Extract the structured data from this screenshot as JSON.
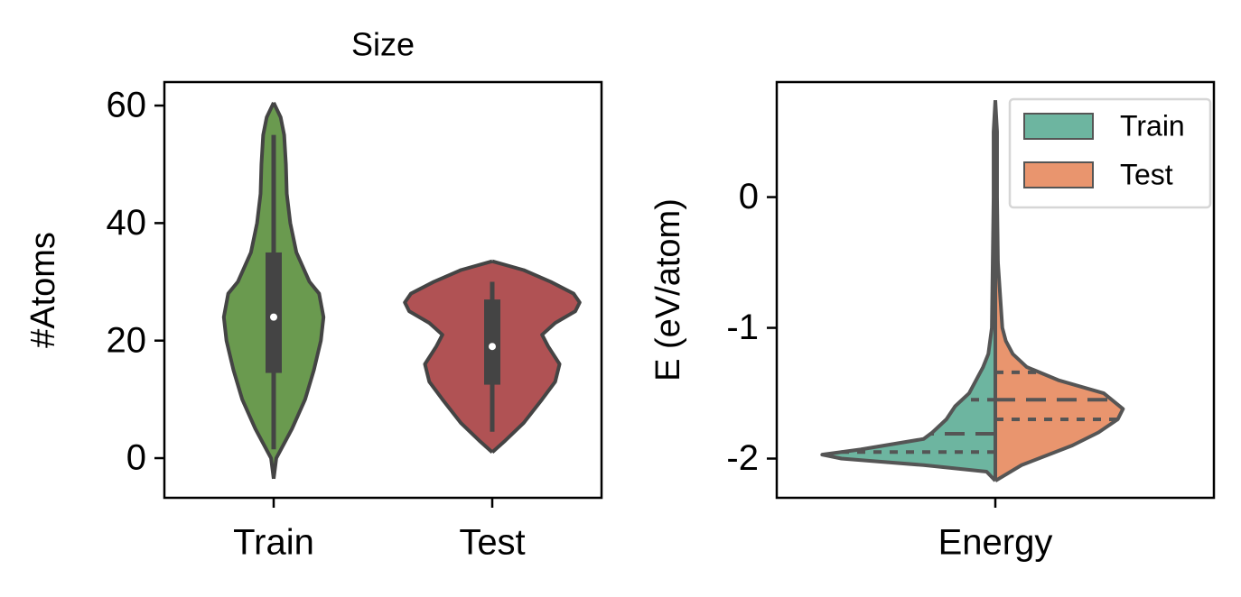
{
  "chart_data": [
    {
      "type": "violin",
      "title": "Size",
      "ylabel": "#Atoms",
      "categories": [
        "Train",
        "Test"
      ],
      "ylim": [
        -6.75,
        64
      ],
      "yticks": [
        0,
        20,
        40,
        60
      ],
      "edge_color": "#444444",
      "violins": [
        {
          "color": "#6a9a4f",
          "y": [
            -3.5,
            0,
            5,
            10,
            15,
            20,
            24,
            28,
            30,
            35,
            40,
            45,
            50,
            55,
            58,
            60.5
          ],
          "density": [
            0,
            0.03,
            0.21,
            0.36,
            0.46,
            0.54,
            0.57,
            0.52,
            0.41,
            0.26,
            0.19,
            0.15,
            0.14,
            0.12,
            0.08,
            0
          ],
          "box": {
            "whisker_low": 1.5,
            "q1": 14.5,
            "median": 24,
            "q3": 35,
            "whisker_high": 55
          }
        },
        {
          "color": "#b05254",
          "y": [
            1,
            3,
            6,
            10,
            13,
            16,
            19,
            21,
            23,
            25,
            26.5,
            28,
            30,
            32,
            33.5
          ],
          "density": [
            0,
            0.15,
            0.36,
            0.57,
            0.72,
            0.77,
            0.64,
            0.57,
            0.72,
            0.95,
            1.0,
            0.93,
            0.67,
            0.36,
            0
          ],
          "box": {
            "whisker_low": 4.5,
            "q1": 12.5,
            "median": 19,
            "q3": 27,
            "whisker_high": 30
          }
        }
      ]
    },
    {
      "type": "split_violin",
      "ylabel": "E (eV/atom)",
      "categories": [
        "Energy"
      ],
      "ylim": [
        -2.3,
        0.88
      ],
      "yticks": [
        -2,
        -1,
        0
      ],
      "legend": "upper right",
      "edge_color": "#555555",
      "series": [
        {
          "name": "Train",
          "color": "#6db5a0",
          "y": [
            -2.17,
            -2.1,
            -2.05,
            -2.0,
            -1.97,
            -1.93,
            -1.85,
            -1.8,
            -1.7,
            -1.6,
            -1.5,
            -1.4,
            -1.3,
            -1.2,
            -1.0,
            -0.5,
            0,
            0.5,
            0.74
          ],
          "density": [
            0,
            0.05,
            0.41,
            0.88,
            0.99,
            0.77,
            0.41,
            0.36,
            0.28,
            0.23,
            0.15,
            0.11,
            0.07,
            0.04,
            0.02,
            0.015,
            0.01,
            0.01,
            0
          ],
          "quartiles": [
            -1.95,
            -1.81,
            -1.55
          ]
        },
        {
          "name": "Test",
          "color": "#e9956e",
          "y": [
            -2.17,
            -2.05,
            -1.9,
            -1.8,
            -1.7,
            -1.62,
            -1.5,
            -1.4,
            -1.3,
            -1.2,
            -1.1,
            -1.0,
            -0.8,
            -0.5,
            0,
            0.5,
            0.74
          ],
          "density": [
            0,
            0.15,
            0.44,
            0.59,
            0.7,
            0.73,
            0.62,
            0.36,
            0.18,
            0.1,
            0.06,
            0.04,
            0.03,
            0.015,
            0.01,
            0.01,
            0
          ],
          "quartiles": [
            -1.7,
            -1.55,
            -1.34
          ]
        }
      ]
    }
  ]
}
